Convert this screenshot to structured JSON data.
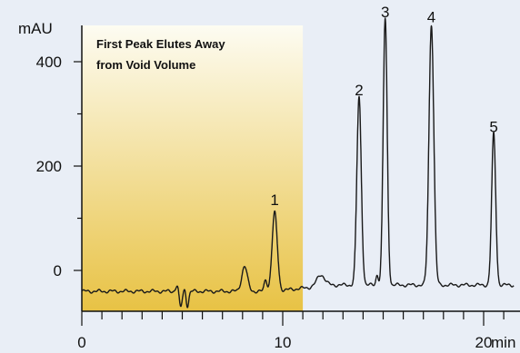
{
  "chart_data": {
    "type": "line",
    "ylabel": "mAU",
    "xlabel": "min",
    "xlim": [
      0,
      21.5
    ],
    "ylim": [
      -90,
      500
    ],
    "x_ticks": [
      0,
      10,
      20
    ],
    "x_tick_labels": [
      "0",
      "10",
      "20"
    ],
    "y_ticks": [
      0,
      200,
      400
    ],
    "y_tick_labels": [
      "0",
      "200",
      "400"
    ],
    "annotation": [
      "First Peak Elutes Away",
      "from Void Volume"
    ],
    "highlight_region": {
      "x_start": 0,
      "x_end": 11,
      "colors": [
        "#fdfcf2",
        "#e8c244"
      ]
    },
    "baseline_value": -40,
    "disturbances": [
      {
        "x": 4.8,
        "height": 20,
        "width": 0.09
      },
      {
        "x": 4.9,
        "height": -40,
        "width": 0.08
      },
      {
        "x": 5.25,
        "height": -30,
        "width": 0.07
      },
      {
        "x": 5.15,
        "height": 10,
        "width": 0.06
      },
      {
        "x": 8.1,
        "height": 48,
        "width": 0.14
      },
      {
        "x": 9.15,
        "height": 22,
        "width": 0.07
      },
      {
        "x": 11.9,
        "height": 22,
        "width": 0.2
      },
      {
        "x": 14.7,
        "height": 20,
        "width": 0.06
      }
    ],
    "peaks": [
      {
        "label": "1",
        "x": 9.6,
        "y": 110
      },
      {
        "label": "2",
        "x": 13.8,
        "y": 320
      },
      {
        "label": "3",
        "x": 15.1,
        "y": 470
      },
      {
        "label": "4",
        "x": 17.4,
        "y": 460
      },
      {
        "label": "5",
        "x": 20.5,
        "y": 250
      }
    ],
    "colors": {
      "trace": "#1a1a1a",
      "axis": "#111111",
      "background": "#e9eef6"
    }
  }
}
